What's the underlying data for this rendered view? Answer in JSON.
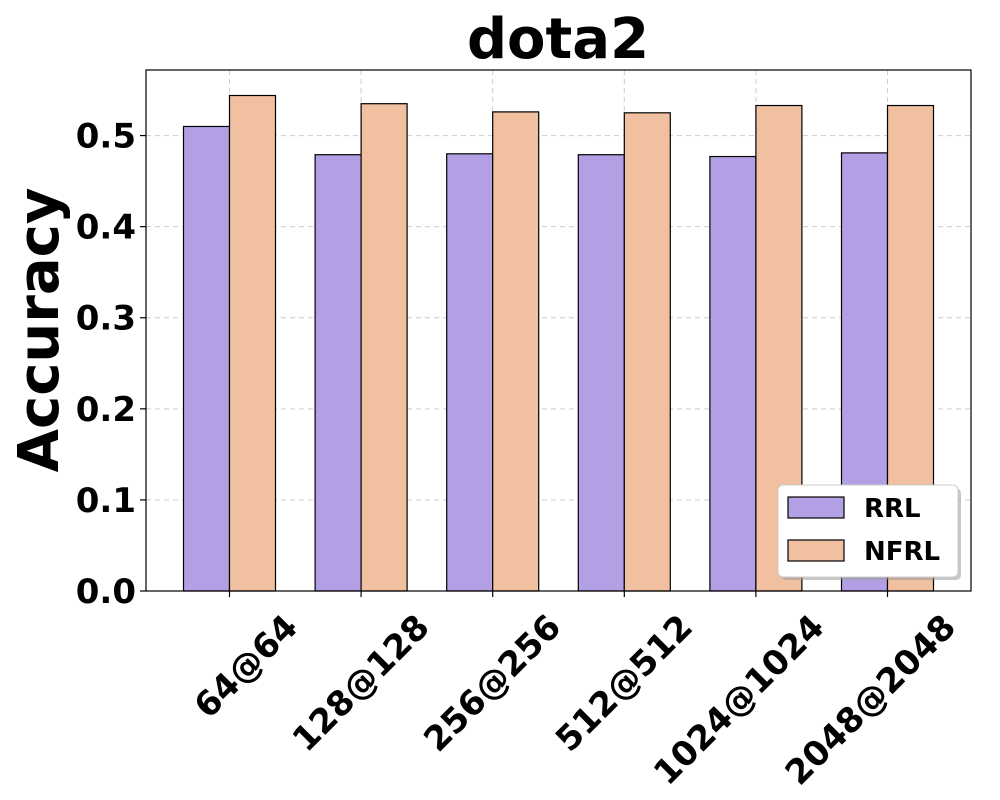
{
  "chart_data": {
    "type": "bar",
    "title": "dota2",
    "xlabel": "",
    "ylabel": "Accuracy",
    "categories": [
      "64@64",
      "128@128",
      "256@256",
      "512@512",
      "1024@1024",
      "2048@2048"
    ],
    "series": [
      {
        "name": "RRL",
        "color": "#b39fe3",
        "values": [
          0.51,
          0.479,
          0.48,
          0.479,
          0.477,
          0.481
        ]
      },
      {
        "name": "NFRL",
        "color": "#f0c0a0",
        "values": [
          0.544,
          0.535,
          0.526,
          0.525,
          0.533,
          0.533
        ]
      }
    ],
    "ylim": [
      0,
      0.572
    ],
    "yticks": [
      "0.0",
      "0.1",
      "0.2",
      "0.3",
      "0.4",
      "0.5"
    ],
    "grid": true,
    "legend_position": "lower-right"
  }
}
